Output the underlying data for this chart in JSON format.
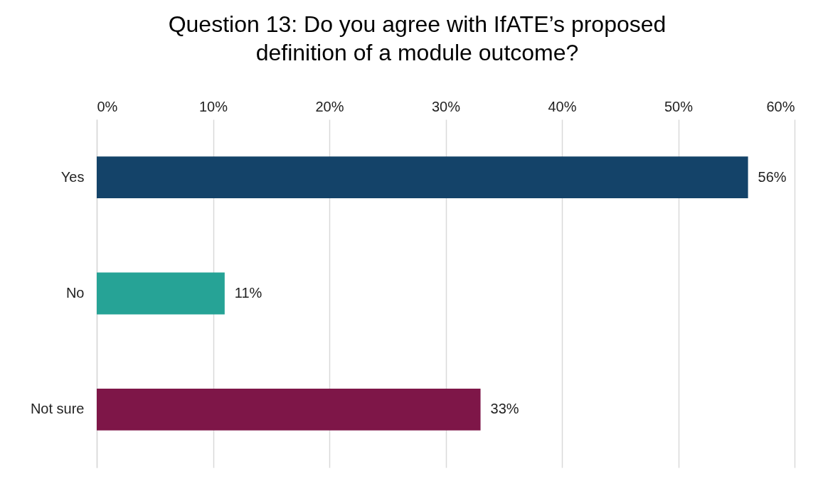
{
  "chart_data": {
    "type": "bar",
    "orientation": "horizontal",
    "title": "Question 13: Do you agree with IfATE’s proposed definition of a module outcome?",
    "categories": [
      "Yes",
      "No",
      "Not sure"
    ],
    "values": [
      56,
      11,
      33
    ],
    "colors": [
      "#144369",
      "#26a396",
      "#7e1648"
    ],
    "value_labels": [
      "56%",
      "11%",
      "33%"
    ],
    "xlim": [
      0,
      60
    ],
    "xticks": [
      {
        "value": 0,
        "label": "0%"
      },
      {
        "value": 10,
        "label": "10%"
      },
      {
        "value": 20,
        "label": "20%"
      },
      {
        "value": 30,
        "label": "30%"
      },
      {
        "value": 40,
        "label": "40%"
      },
      {
        "value": 50,
        "label": "50%"
      },
      {
        "value": 60,
        "label": "60%"
      }
    ],
    "grid": "x",
    "legend": false
  }
}
